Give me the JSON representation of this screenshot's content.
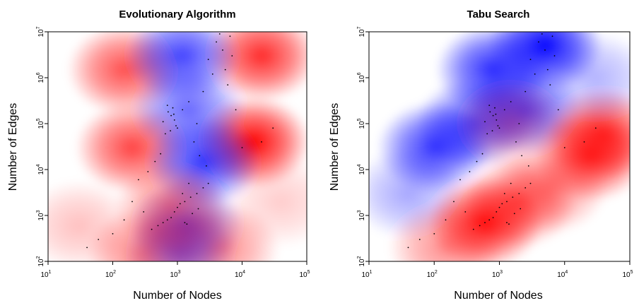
{
  "colors": {
    "positive": "#ff0000",
    "negative": "#0000ff",
    "neutral": "#ffffff",
    "points": "#000000",
    "frame": "#000000"
  },
  "chart_data": [
    {
      "type": "heatmap",
      "title": "Evolutionary Algorithm",
      "xlabel": "Number of Nodes",
      "ylabel": "Number of Edges",
      "xscale": "log",
      "yscale": "log",
      "xlim": [
        10,
        100000
      ],
      "ylim": [
        100,
        10000000
      ],
      "xticks": [
        {
          "base": "10",
          "exp": "1"
        },
        {
          "base": "10",
          "exp": "2"
        },
        {
          "base": "10",
          "exp": "3"
        },
        {
          "base": "10",
          "exp": "4"
        },
        {
          "base": "10",
          "exp": "5"
        }
      ],
      "yticks": [
        {
          "base": "10",
          "exp": "2"
        },
        {
          "base": "10",
          "exp": "3"
        },
        {
          "base": "10",
          "exp": "4"
        },
        {
          "base": "10",
          "exp": "5"
        },
        {
          "base": "10",
          "exp": "6"
        },
        {
          "base": "10",
          "exp": "7"
        }
      ],
      "grid": false,
      "legend": "none",
      "regions": [
        {
          "x": 200,
          "y": 30000,
          "level": 0.75
        },
        {
          "x": 15000,
          "y": 40000,
          "level": 1.0
        },
        {
          "x": 20000,
          "y": 3000000,
          "level": 0.85
        },
        {
          "x": 150,
          "y": 1500000,
          "level": 0.7
        },
        {
          "x": 30,
          "y": 600,
          "level": 0.25
        },
        {
          "x": 40000,
          "y": 2000,
          "level": 0.2
        },
        {
          "x": 1200,
          "y": 3000000,
          "level": -0.75
        },
        {
          "x": 1500,
          "y": 200000,
          "level": -0.6
        },
        {
          "x": 2500,
          "y": 15000,
          "level": -0.8
        },
        {
          "x": 1400,
          "y": 600,
          "level": -0.6
        },
        {
          "x": 1100,
          "y": 150,
          "level": -0.5
        },
        {
          "x": 300,
          "y": 150,
          "level": 0.5
        },
        {
          "x": 5000,
          "y": 200,
          "level": 0.45
        },
        {
          "x": 800,
          "y": 1500,
          "level": 0.5
        }
      ],
      "points": [
        [
          720,
          180000
        ],
        [
          800,
          150000
        ],
        [
          850,
          220000
        ],
        [
          900,
          120000
        ],
        [
          950,
          90000
        ],
        [
          700,
          250000
        ],
        [
          650,
          60000
        ],
        [
          780,
          70000
        ],
        [
          880,
          160000
        ],
        [
          600,
          110000
        ],
        [
          1000,
          80000
        ],
        [
          1200,
          200000
        ],
        [
          1500,
          300000
        ],
        [
          3000,
          2500000
        ],
        [
          4000,
          6000000
        ],
        [
          5000,
          4000000
        ],
        [
          5500,
          1500000
        ],
        [
          4500,
          9000000
        ],
        [
          3500,
          1200000
        ],
        [
          6000,
          700000
        ],
        [
          2500,
          500000
        ],
        [
          2000,
          100000
        ],
        [
          1800,
          40000
        ],
        [
          2200,
          20000
        ],
        [
          2800,
          12000
        ],
        [
          1500,
          5000
        ],
        [
          1200,
          3000
        ],
        [
          1000,
          1500
        ],
        [
          900,
          1200
        ],
        [
          800,
          900
        ],
        [
          700,
          800
        ],
        [
          600,
          700
        ],
        [
          1100,
          1800
        ],
        [
          1300,
          2000
        ],
        [
          1600,
          2500
        ],
        [
          2000,
          3000
        ],
        [
          2500,
          4000
        ],
        [
          3000,
          5000
        ],
        [
          500,
          600
        ],
        [
          400,
          500
        ],
        [
          300,
          1200
        ],
        [
          200,
          2000
        ],
        [
          150,
          800
        ],
        [
          100,
          400
        ],
        [
          60,
          300
        ],
        [
          40,
          200
        ],
        [
          250,
          6000
        ],
        [
          350,
          9000
        ],
        [
          450,
          15000
        ],
        [
          550,
          22000
        ],
        [
          10000,
          30000
        ],
        [
          20000,
          40000
        ],
        [
          30000,
          80000
        ],
        [
          8000,
          200000
        ],
        [
          7000,
          3000000
        ],
        [
          6500,
          8000000
        ],
        [
          1300,
          700
        ],
        [
          1400,
          650
        ],
        [
          1700,
          1100
        ],
        [
          2100,
          1400
        ]
      ]
    },
    {
      "type": "heatmap",
      "title": "Tabu Search",
      "xlabel": "Number of Nodes",
      "ylabel": "Number of Edges",
      "xscale": "log",
      "yscale": "log",
      "xlim": [
        10,
        100000
      ],
      "ylim": [
        100,
        10000000
      ],
      "xticks": [
        {
          "base": "10",
          "exp": "1"
        },
        {
          "base": "10",
          "exp": "2"
        },
        {
          "base": "10",
          "exp": "3"
        },
        {
          "base": "10",
          "exp": "4"
        },
        {
          "base": "10",
          "exp": "5"
        }
      ],
      "yticks": [
        {
          "base": "10",
          "exp": "2"
        },
        {
          "base": "10",
          "exp": "3"
        },
        {
          "base": "10",
          "exp": "4"
        },
        {
          "base": "10",
          "exp": "5"
        },
        {
          "base": "10",
          "exp": "6"
        },
        {
          "base": "10",
          "exp": "7"
        }
      ],
      "grid": false,
      "legend": "none",
      "regions": [
        {
          "x": 5000,
          "y": 5000000,
          "level": -1.0
        },
        {
          "x": 800,
          "y": 1500000,
          "level": -0.85
        },
        {
          "x": 100,
          "y": 30000,
          "level": -0.8
        },
        {
          "x": 400,
          "y": 100000,
          "level": -0.7
        },
        {
          "x": 40,
          "y": 3000,
          "level": -0.35
        },
        {
          "x": 2500,
          "y": 200000,
          "level": -0.75
        },
        {
          "x": 25000,
          "y": 20000,
          "level": 0.85
        },
        {
          "x": 40000,
          "y": 60000,
          "level": 0.8
        },
        {
          "x": 600,
          "y": 700,
          "level": 0.95
        },
        {
          "x": 2000,
          "y": 2000,
          "level": 0.6
        },
        {
          "x": 6000,
          "y": 4000,
          "level": 0.45
        },
        {
          "x": 150,
          "y": 200,
          "level": 0.45
        },
        {
          "x": 30000,
          "y": 1000000,
          "level": -0.3
        },
        {
          "x": 1500,
          "y": 100000,
          "level": 0.3
        }
      ],
      "points": [
        [
          720,
          180000
        ],
        [
          800,
          150000
        ],
        [
          850,
          220000
        ],
        [
          900,
          120000
        ],
        [
          950,
          90000
        ],
        [
          700,
          250000
        ],
        [
          650,
          60000
        ],
        [
          780,
          70000
        ],
        [
          880,
          160000
        ],
        [
          600,
          110000
        ],
        [
          1000,
          80000
        ],
        [
          1200,
          200000
        ],
        [
          1500,
          300000
        ],
        [
          3000,
          2500000
        ],
        [
          4000,
          6000000
        ],
        [
          5000,
          4000000
        ],
        [
          5500,
          1500000
        ],
        [
          4500,
          9000000
        ],
        [
          3500,
          1200000
        ],
        [
          6000,
          700000
        ],
        [
          2500,
          500000
        ],
        [
          2000,
          100000
        ],
        [
          1800,
          40000
        ],
        [
          2200,
          20000
        ],
        [
          2800,
          12000
        ],
        [
          1500,
          5000
        ],
        [
          1200,
          3000
        ],
        [
          1000,
          1500
        ],
        [
          900,
          1200
        ],
        [
          800,
          900
        ],
        [
          700,
          800
        ],
        [
          600,
          700
        ],
        [
          1100,
          1800
        ],
        [
          1300,
          2000
        ],
        [
          1600,
          2500
        ],
        [
          2000,
          3000
        ],
        [
          2500,
          4000
        ],
        [
          3000,
          5000
        ],
        [
          500,
          600
        ],
        [
          400,
          500
        ],
        [
          300,
          1200
        ],
        [
          200,
          2000
        ],
        [
          150,
          800
        ],
        [
          100,
          400
        ],
        [
          60,
          300
        ],
        [
          40,
          200
        ],
        [
          250,
          6000
        ],
        [
          350,
          9000
        ],
        [
          450,
          15000
        ],
        [
          550,
          22000
        ],
        [
          10000,
          30000
        ],
        [
          20000,
          40000
        ],
        [
          30000,
          80000
        ],
        [
          8000,
          200000
        ],
        [
          7000,
          3000000
        ],
        [
          6500,
          8000000
        ],
        [
          1300,
          700
        ],
        [
          1400,
          650
        ],
        [
          1700,
          1100
        ],
        [
          2100,
          1400
        ]
      ]
    }
  ]
}
